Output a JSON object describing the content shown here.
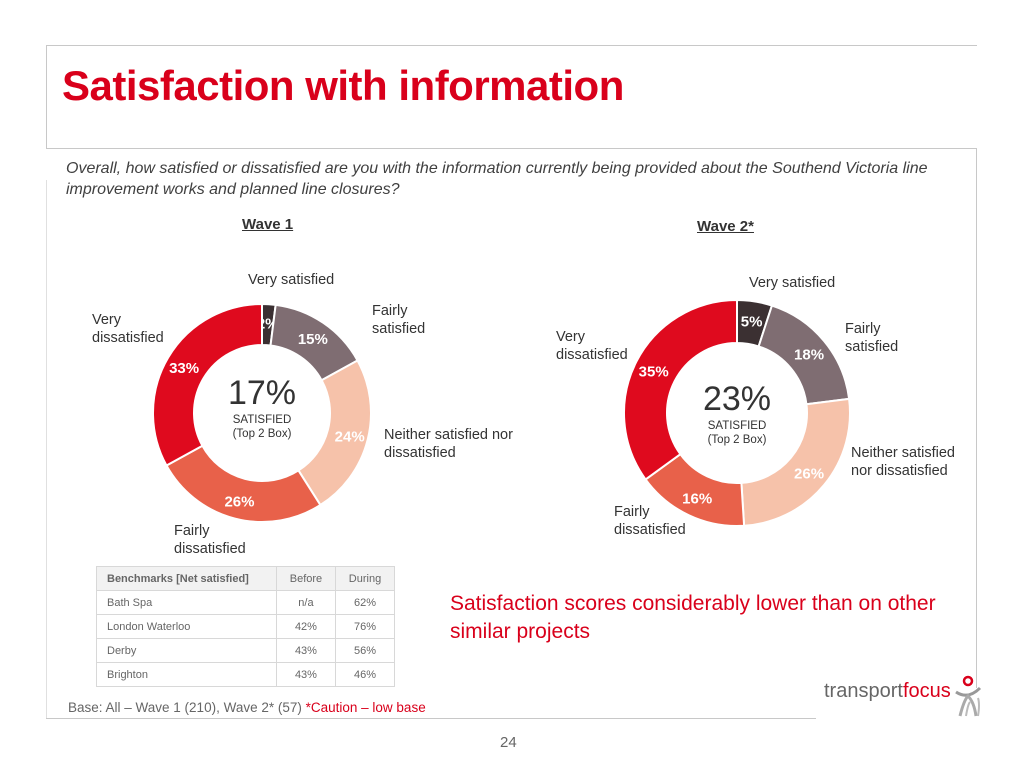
{
  "title": "Satisfaction with information",
  "question": "Overall, how satisfied or dissatisfied are you with the information currently being provided about the Southend Victoria line improvement works and planned line closures?",
  "colors": {
    "very_satisfied": "#3b3032",
    "fairly_satisfied": "#7f6d72",
    "neither": "#f6c2aa",
    "fairly_dissatisfied": "#e8614a",
    "very_dissatisfied": "#df0a1e",
    "accent": "#d9001b"
  },
  "chart_data": [
    {
      "type": "pie",
      "variant": "donut",
      "title": "Wave 1",
      "categories": [
        "Very satisfied",
        "Fairly satisfied",
        "Neither satisfied nor dissatisfied",
        "Fairly dissatisfied",
        "Very dissatisfied"
      ],
      "values": [
        2,
        15,
        24,
        26,
        33
      ],
      "data_labels": [
        "2%",
        "15%",
        "24%",
        "26%",
        "33%"
      ],
      "center_value": "17%",
      "center_label": "SATISFIED",
      "center_sublabel": "(Top 2 Box)"
    },
    {
      "type": "pie",
      "variant": "donut",
      "title": "Wave 2*",
      "categories": [
        "Very satisfied",
        "Fairly satisfied",
        "Neither satisfied nor dissatisfied",
        "Fairly dissatisfied",
        "Very dissatisfied"
      ],
      "values": [
        5,
        18,
        26,
        16,
        35
      ],
      "data_labels": [
        "5%",
        "18%",
        "26%",
        "16%",
        "35%"
      ],
      "center_value": "23%",
      "center_label": "SATISFIED",
      "center_sublabel": "(Top 2 Box)"
    }
  ],
  "wave1_labels": {
    "very_satisfied": "Very satisfied",
    "fairly_satisfied_1": "Fairly",
    "fairly_satisfied_2": "satisfied",
    "neither_1": "Neither satisfied nor",
    "neither_2": "dissatisfied",
    "fairly_dissatisfied_1": "Fairly",
    "fairly_dissatisfied_2": "dissatisfied",
    "very_dissatisfied_1": "Very",
    "very_dissatisfied_2": "dissatisfied"
  },
  "wave2_labels": {
    "very_satisfied": "Very satisfied",
    "fairly_satisfied_1": "Fairly",
    "fairly_satisfied_2": "satisfied",
    "neither_1": "Neither satisfied",
    "neither_2": "nor dissatisfied",
    "fairly_dissatisfied_1": "Fairly",
    "fairly_dissatisfied_2": "dissatisfied",
    "very_dissatisfied_1": "Very",
    "very_dissatisfied_2": "dissatisfied"
  },
  "benchmarks": {
    "headers": [
      "Benchmarks [Net satisfied]",
      "Before",
      "During"
    ],
    "rows": [
      [
        "Bath Spa",
        "n/a",
        "62%"
      ],
      [
        "London Waterloo",
        "42%",
        "76%"
      ],
      [
        "Derby",
        "43%",
        "56%"
      ],
      [
        "Brighton",
        "43%",
        "46%"
      ]
    ]
  },
  "callout": "Satisfaction scores considerably lower than on other similar projects",
  "base_note": "Base: All – Wave 1 (210), Wave 2* (57)",
  "caution_note": "*Caution – low base",
  "logo": {
    "part1": "transport",
    "part2": "focus"
  },
  "page_number": "24"
}
